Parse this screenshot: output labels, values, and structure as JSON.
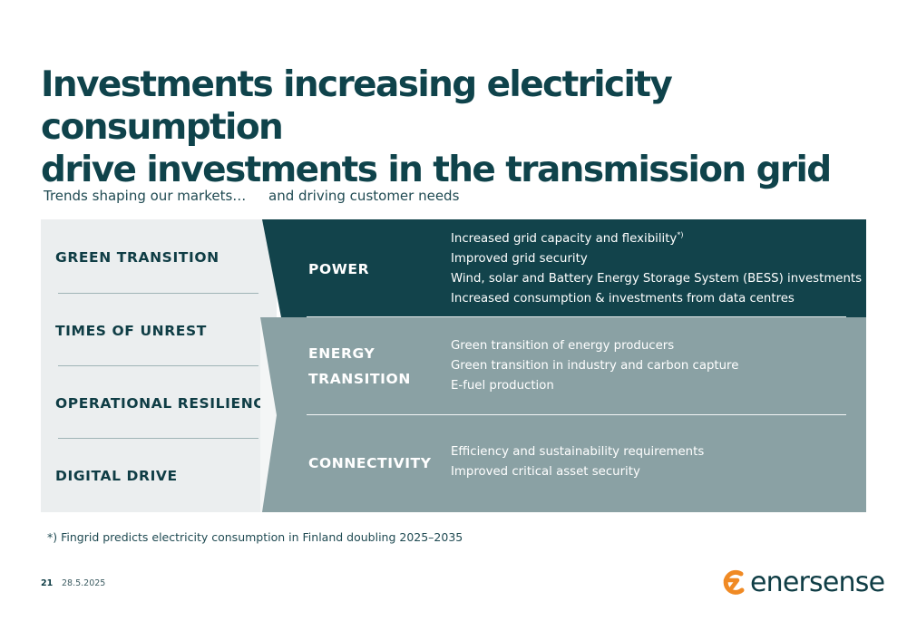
{
  "title": {
    "line1": "Investments increasing electricity consumption",
    "line2": "drive investments in the transmission grid"
  },
  "subtitles": {
    "left": "Trends shaping our markets…",
    "right": "and driving customer needs"
  },
  "trends": [
    "GREEN TRANSITION",
    "TIMES OF UNREST",
    "OPERATIONAL RESILIENCE",
    "DIGITAL DRIVE"
  ],
  "needs": [
    {
      "label_lines": [
        "POWER"
      ],
      "items": [
        "Increased grid capacity and flexibility",
        "Improved grid security",
        "Wind, solar and Battery Energy Storage System (BESS) investments",
        "Increased consumption & investments from data centres"
      ],
      "first_item_marker": "*)"
    },
    {
      "label_lines": [
        "ENERGY",
        "TRANSITION"
      ],
      "items": [
        "Green transition of energy producers",
        "Green transition in industry and carbon capture",
        "E-fuel production"
      ]
    },
    {
      "label_lines": [
        "CONNECTIVITY"
      ],
      "items": [
        "Efficiency and sustainability requirements",
        "Improved critical asset security"
      ]
    }
  ],
  "footnote": "*) Fingrid predicts electricity consumption in Finland doubling 2025–2035",
  "footer": {
    "page_number": "21",
    "date": "28.5.2025",
    "logo_text": "enersense"
  },
  "colors": {
    "dark_teal": "#12434b",
    "grey_teal": "#8aa1a4",
    "light_panel": "#ebeeef",
    "logo_orange": "#f08a24"
  }
}
